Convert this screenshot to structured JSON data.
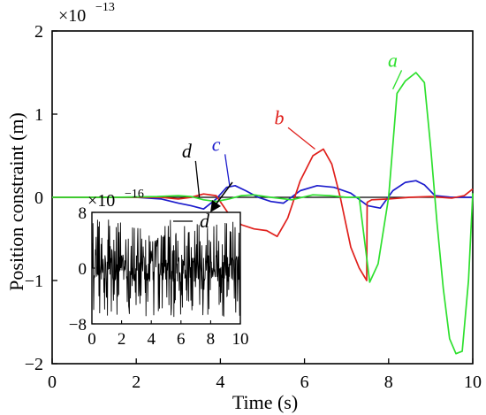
{
  "chart_data": [
    {
      "type": "line",
      "xlabel": "Time (s)",
      "ylabel": "Position constraint (m)",
      "xlim": [
        0,
        10
      ],
      "ylim": [
        -2,
        2
      ],
      "y_multiplier": "×10",
      "y_multiplier_exp": "−13",
      "xticks": [
        "0",
        "2",
        "4",
        "6",
        "8",
        "10"
      ],
      "yticks": [
        "−2",
        "−1",
        "0",
        "1",
        "2"
      ],
      "grid": false,
      "colors": {
        "a": "#2ee02e",
        "b": "#e0201c",
        "c": "#1c1ccc",
        "d": "#000000"
      },
      "series": [
        {
          "name": "a",
          "x": [
            0,
            1.5,
            2.5,
            3.0,
            3.3,
            3.6,
            3.9,
            4.2,
            4.5,
            4.8,
            5.2,
            5.7,
            6.2,
            6.6,
            7.0,
            7.3,
            7.55,
            7.75,
            8.0,
            8.2,
            8.4,
            8.65,
            8.85,
            9.0,
            9.15,
            9.3,
            9.45,
            9.6,
            9.75,
            9.9,
            10.0
          ],
          "y": [
            0,
            0,
            0.01,
            0.02,
            0.01,
            -0.03,
            -0.05,
            -0.02,
            0.02,
            0.03,
            0.0,
            -0.03,
            0.03,
            0.02,
            0.0,
            0.0,
            -1.02,
            -0.8,
            0.0,
            1.25,
            1.4,
            1.5,
            1.38,
            0.6,
            -0.3,
            -1.1,
            -1.7,
            -1.88,
            -1.85,
            -1.0,
            0.05
          ]
        },
        {
          "name": "b",
          "x": [
            0,
            2.6,
            3.0,
            3.3,
            3.6,
            3.9,
            4.2,
            4.5,
            4.8,
            5.1,
            5.35,
            5.6,
            5.9,
            6.2,
            6.45,
            6.65,
            6.85,
            7.1,
            7.3,
            7.48,
            7.49,
            7.6,
            8.0,
            8.5,
            9.0,
            9.5,
            9.8,
            10.0
          ],
          "y": [
            0,
            0,
            -0.02,
            0.0,
            0.04,
            0.02,
            -0.2,
            -0.33,
            -0.38,
            -0.4,
            -0.47,
            -0.25,
            0.2,
            0.5,
            0.58,
            0.4,
            0.0,
            -0.6,
            -0.85,
            -1.0,
            -0.06,
            -0.03,
            -0.02,
            0.0,
            0.01,
            -0.01,
            0.02,
            0.1
          ]
        },
        {
          "name": "c",
          "x": [
            0,
            2.0,
            2.6,
            3.0,
            3.3,
            3.6,
            3.9,
            4.15,
            4.35,
            4.6,
            4.9,
            5.2,
            5.5,
            5.9,
            6.3,
            6.7,
            7.1,
            7.5,
            7.8,
            8.1,
            8.4,
            8.65,
            8.85,
            9.1,
            9.5,
            10.0
          ],
          "y": [
            0,
            0,
            -0.02,
            -0.07,
            -0.1,
            -0.14,
            -0.02,
            0.12,
            0.14,
            0.08,
            0.0,
            -0.05,
            -0.07,
            0.08,
            0.14,
            0.12,
            0.05,
            -0.1,
            -0.13,
            0.08,
            0.18,
            0.2,
            0.15,
            0.02,
            0.0,
            0.0
          ]
        },
        {
          "name": "d",
          "x": [
            0,
            10
          ],
          "y": [
            0,
            0
          ]
        }
      ],
      "annotations": [
        {
          "label": "a",
          "x_label": 8.1,
          "y_label": 1.57,
          "x_point": 8.1,
          "y_point": 1.3
        },
        {
          "label": "b",
          "x_label": 5.4,
          "y_label": 0.88,
          "x_point": 6.25,
          "y_point": 0.58
        },
        {
          "label": "c",
          "x_label": 3.9,
          "y_label": 0.56,
          "x_point": 4.22,
          "y_point": 0.14
        },
        {
          "label": "d",
          "x_label": 3.2,
          "y_label": 0.48,
          "x_point": 3.5,
          "y_point": 0.0
        }
      ]
    },
    {
      "type": "line",
      "role": "inset",
      "xlim": [
        0,
        10
      ],
      "ylim": [
        -8,
        8
      ],
      "y_multiplier": "×10",
      "y_multiplier_exp": "−16",
      "xticks": [
        "0",
        "2",
        "4",
        "6",
        "8",
        "10"
      ],
      "yticks": [
        "−8",
        "0",
        "8"
      ],
      "legend": "top-right",
      "series": [
        {
          "name": "d",
          "x": [
            0,
            10
          ],
          "y_range": [
            -7,
            7
          ],
          "noise": true
        }
      ]
    }
  ]
}
